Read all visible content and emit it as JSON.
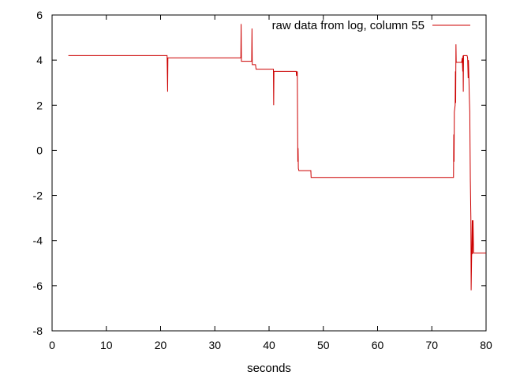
{
  "chart_data": {
    "type": "line",
    "title": "",
    "xlabel": "seconds",
    "ylabel": "",
    "xlim": [
      0,
      80
    ],
    "ylim": [
      -8,
      6
    ],
    "xticks": [
      0,
      10,
      20,
      30,
      40,
      50,
      60,
      70,
      80
    ],
    "yticks": [
      -8,
      -6,
      -4,
      -2,
      0,
      2,
      4,
      6
    ],
    "grid": false,
    "legend_position": "top-right",
    "series": [
      {
        "name": "raw data from log, column 55",
        "color": "#cc0000",
        "points": [
          [
            3.0,
            4.2
          ],
          [
            21.2,
            4.2
          ],
          [
            21.3,
            2.6
          ],
          [
            21.35,
            4.1
          ],
          [
            34.8,
            4.1
          ],
          [
            34.85,
            5.6
          ],
          [
            34.9,
            3.95
          ],
          [
            36.8,
            3.95
          ],
          [
            36.85,
            5.4
          ],
          [
            36.9,
            3.8
          ],
          [
            37.5,
            3.8
          ],
          [
            37.6,
            3.6
          ],
          [
            40.8,
            3.6
          ],
          [
            40.85,
            2.0
          ],
          [
            40.9,
            3.5
          ],
          [
            45.0,
            3.5
          ],
          [
            45.05,
            3.3
          ],
          [
            45.1,
            3.45
          ],
          [
            45.2,
            3.5
          ],
          [
            45.3,
            -0.5
          ],
          [
            45.35,
            0.1
          ],
          [
            45.4,
            -0.8
          ],
          [
            45.5,
            -0.9
          ],
          [
            47.7,
            -0.9
          ],
          [
            47.75,
            -1.2
          ],
          [
            74.0,
            -1.2
          ],
          [
            74.05,
            0.7
          ],
          [
            74.1,
            -0.5
          ],
          [
            74.15,
            1.7
          ],
          [
            74.3,
            2.0
          ],
          [
            74.35,
            3.5
          ],
          [
            74.4,
            2.1
          ],
          [
            74.45,
            4.7
          ],
          [
            74.5,
            3.9
          ],
          [
            75.5,
            3.9
          ],
          [
            75.6,
            4.1
          ],
          [
            75.7,
            3.5
          ],
          [
            75.75,
            4.2
          ],
          [
            75.8,
            2.6
          ],
          [
            75.85,
            4.2
          ],
          [
            76.5,
            4.2
          ],
          [
            76.6,
            4.1
          ],
          [
            76.7,
            3.2
          ],
          [
            76.75,
            4.0
          ],
          [
            76.8,
            3.6
          ],
          [
            76.9,
            2.5
          ],
          [
            77.0,
            1.7
          ],
          [
            77.1,
            -1.3
          ],
          [
            77.2,
            -3.0
          ],
          [
            77.25,
            -6.2
          ],
          [
            77.35,
            -4.6
          ],
          [
            77.45,
            -3.1
          ],
          [
            77.5,
            -4.6
          ],
          [
            77.6,
            -3.1
          ],
          [
            77.7,
            -4.55
          ],
          [
            80.0,
            -4.55
          ]
        ]
      }
    ]
  }
}
